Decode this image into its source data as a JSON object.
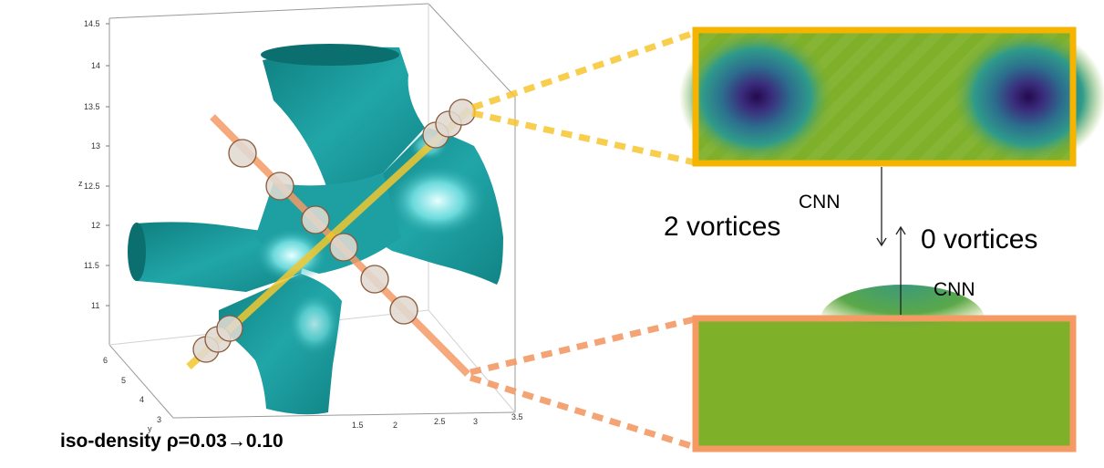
{
  "figure": {
    "caption": "iso-density ρ=0.03→0.10",
    "label_two_vortices": "2 vortices",
    "label_zero_vortices": "0 vortices",
    "cnn_label_top": "CNN",
    "cnn_label_bottom": "CNN"
  },
  "plot3d": {
    "z_axis_label": "z",
    "y_axis_label": "y",
    "z_ticks": [
      "14.5",
      "14",
      "13.5",
      "13",
      "12.5",
      "12",
      "11.5",
      "11"
    ],
    "y_ticks": [
      "6",
      "5",
      "4",
      "3"
    ],
    "x_ticks": [
      "1.5",
      "2",
      "2.5",
      "3",
      "3.5"
    ],
    "surface_color": "#1a9a9c",
    "highlight_color": "#8ff4f4"
  },
  "colors": {
    "yellow_line": "#f7c630",
    "orange_line": "#f39a65",
    "yellow_frame": "#f4b400",
    "orange_frame": "#f59a62",
    "panel_green": "#7fb02a",
    "panel_dark": "#2a0e5a"
  }
}
